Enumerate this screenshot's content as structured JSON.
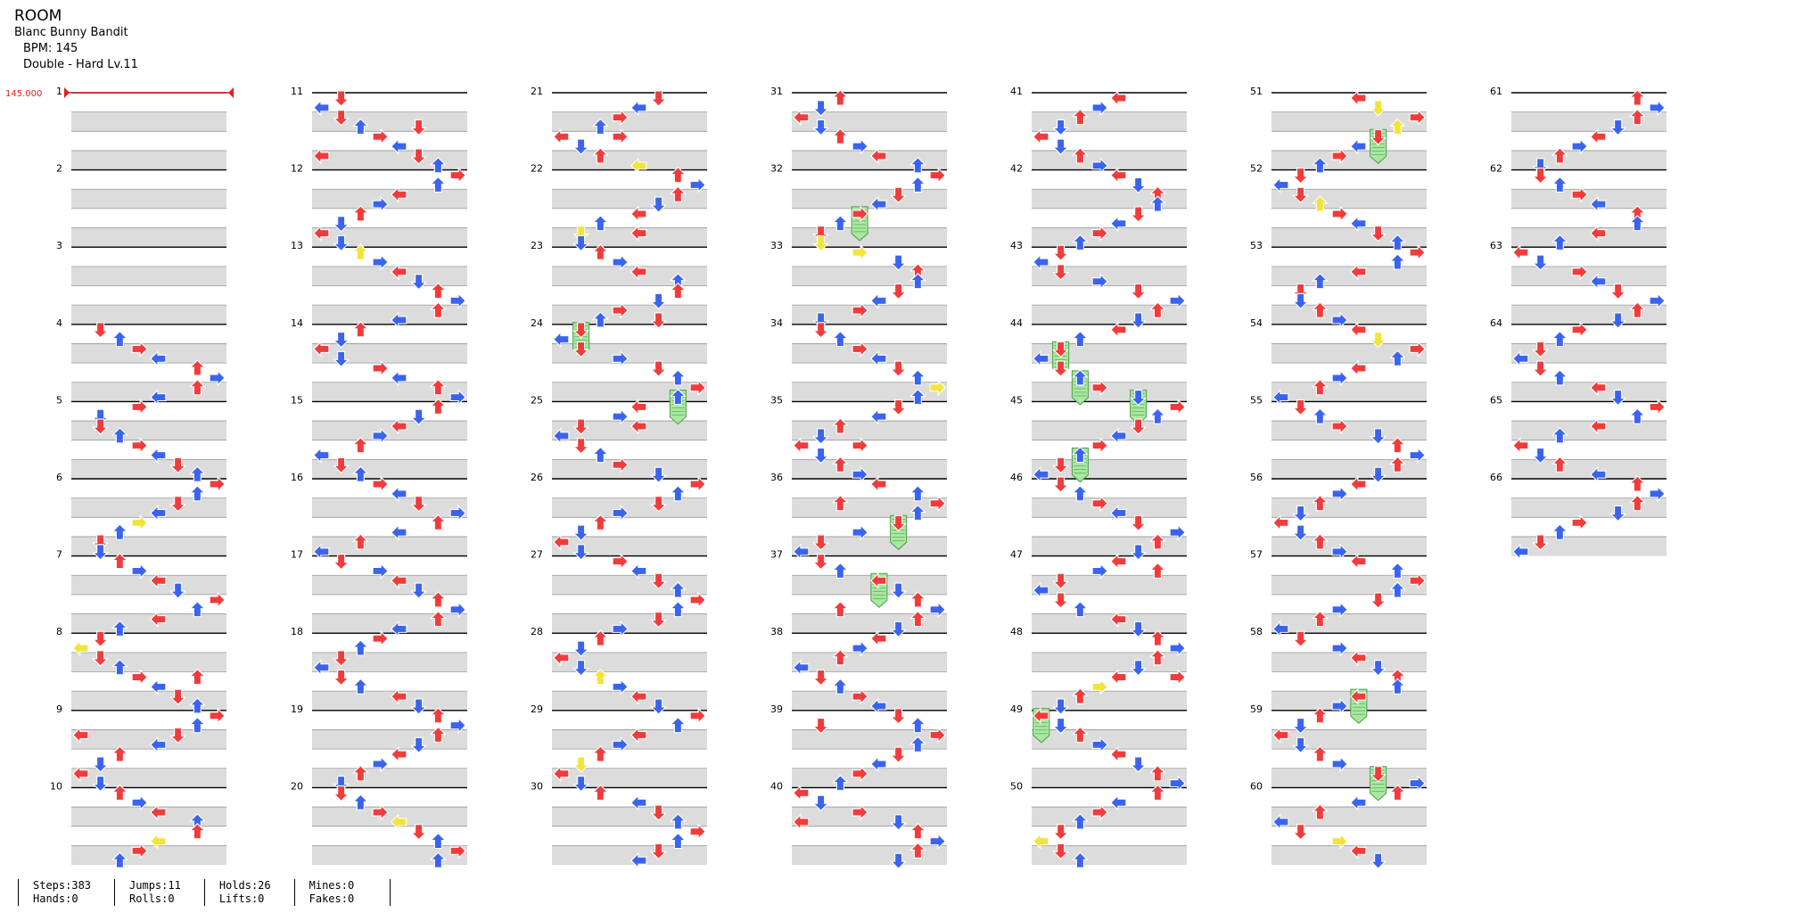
{
  "header": {
    "title": "ROOM",
    "artist": "Blanc Bunny Bandit",
    "bpm": "BPM: 145",
    "difficulty": "Double - Hard  Lv.11"
  },
  "bpm_marker": "145.000",
  "measures": [
    "1",
    "2",
    "3",
    "4",
    "5",
    "6",
    "7",
    "8",
    "9",
    "10",
    "11",
    "12",
    "13",
    "14",
    "15",
    "16",
    "17",
    "18",
    "19",
    "20",
    "21",
    "22",
    "23",
    "24",
    "25",
    "26",
    "27",
    "28",
    "29",
    "30",
    "31",
    "32",
    "33",
    "34",
    "35",
    "36",
    "37",
    "38",
    "39",
    "40",
    "41",
    "42",
    "43",
    "44",
    "45",
    "46",
    "47",
    "48",
    "49",
    "50",
    "51",
    "52",
    "53",
    "54",
    "55",
    "56",
    "57",
    "58",
    "59",
    "60",
    "61",
    "62",
    "63",
    "64",
    "65",
    "66"
  ],
  "colors": {
    "red_note": "#f23b3b",
    "blue_note": "#3a64f0",
    "yellow_note": "#f2e53a",
    "hold_body": "#a8e8a0",
    "hold_border": "#4c9a4c",
    "bpm_line": "#e02020",
    "stripe": "#dcdcdc"
  },
  "stats": [
    {
      "a": "Steps:383",
      "b": "Hands:0"
    },
    {
      "a": "Jumps:11",
      "b": "Rolls:0"
    },
    {
      "a": "Holds:26",
      "b": "Lifts:0"
    },
    {
      "a": "Mines:0",
      "b": "Fakes:0"
    }
  ]
}
